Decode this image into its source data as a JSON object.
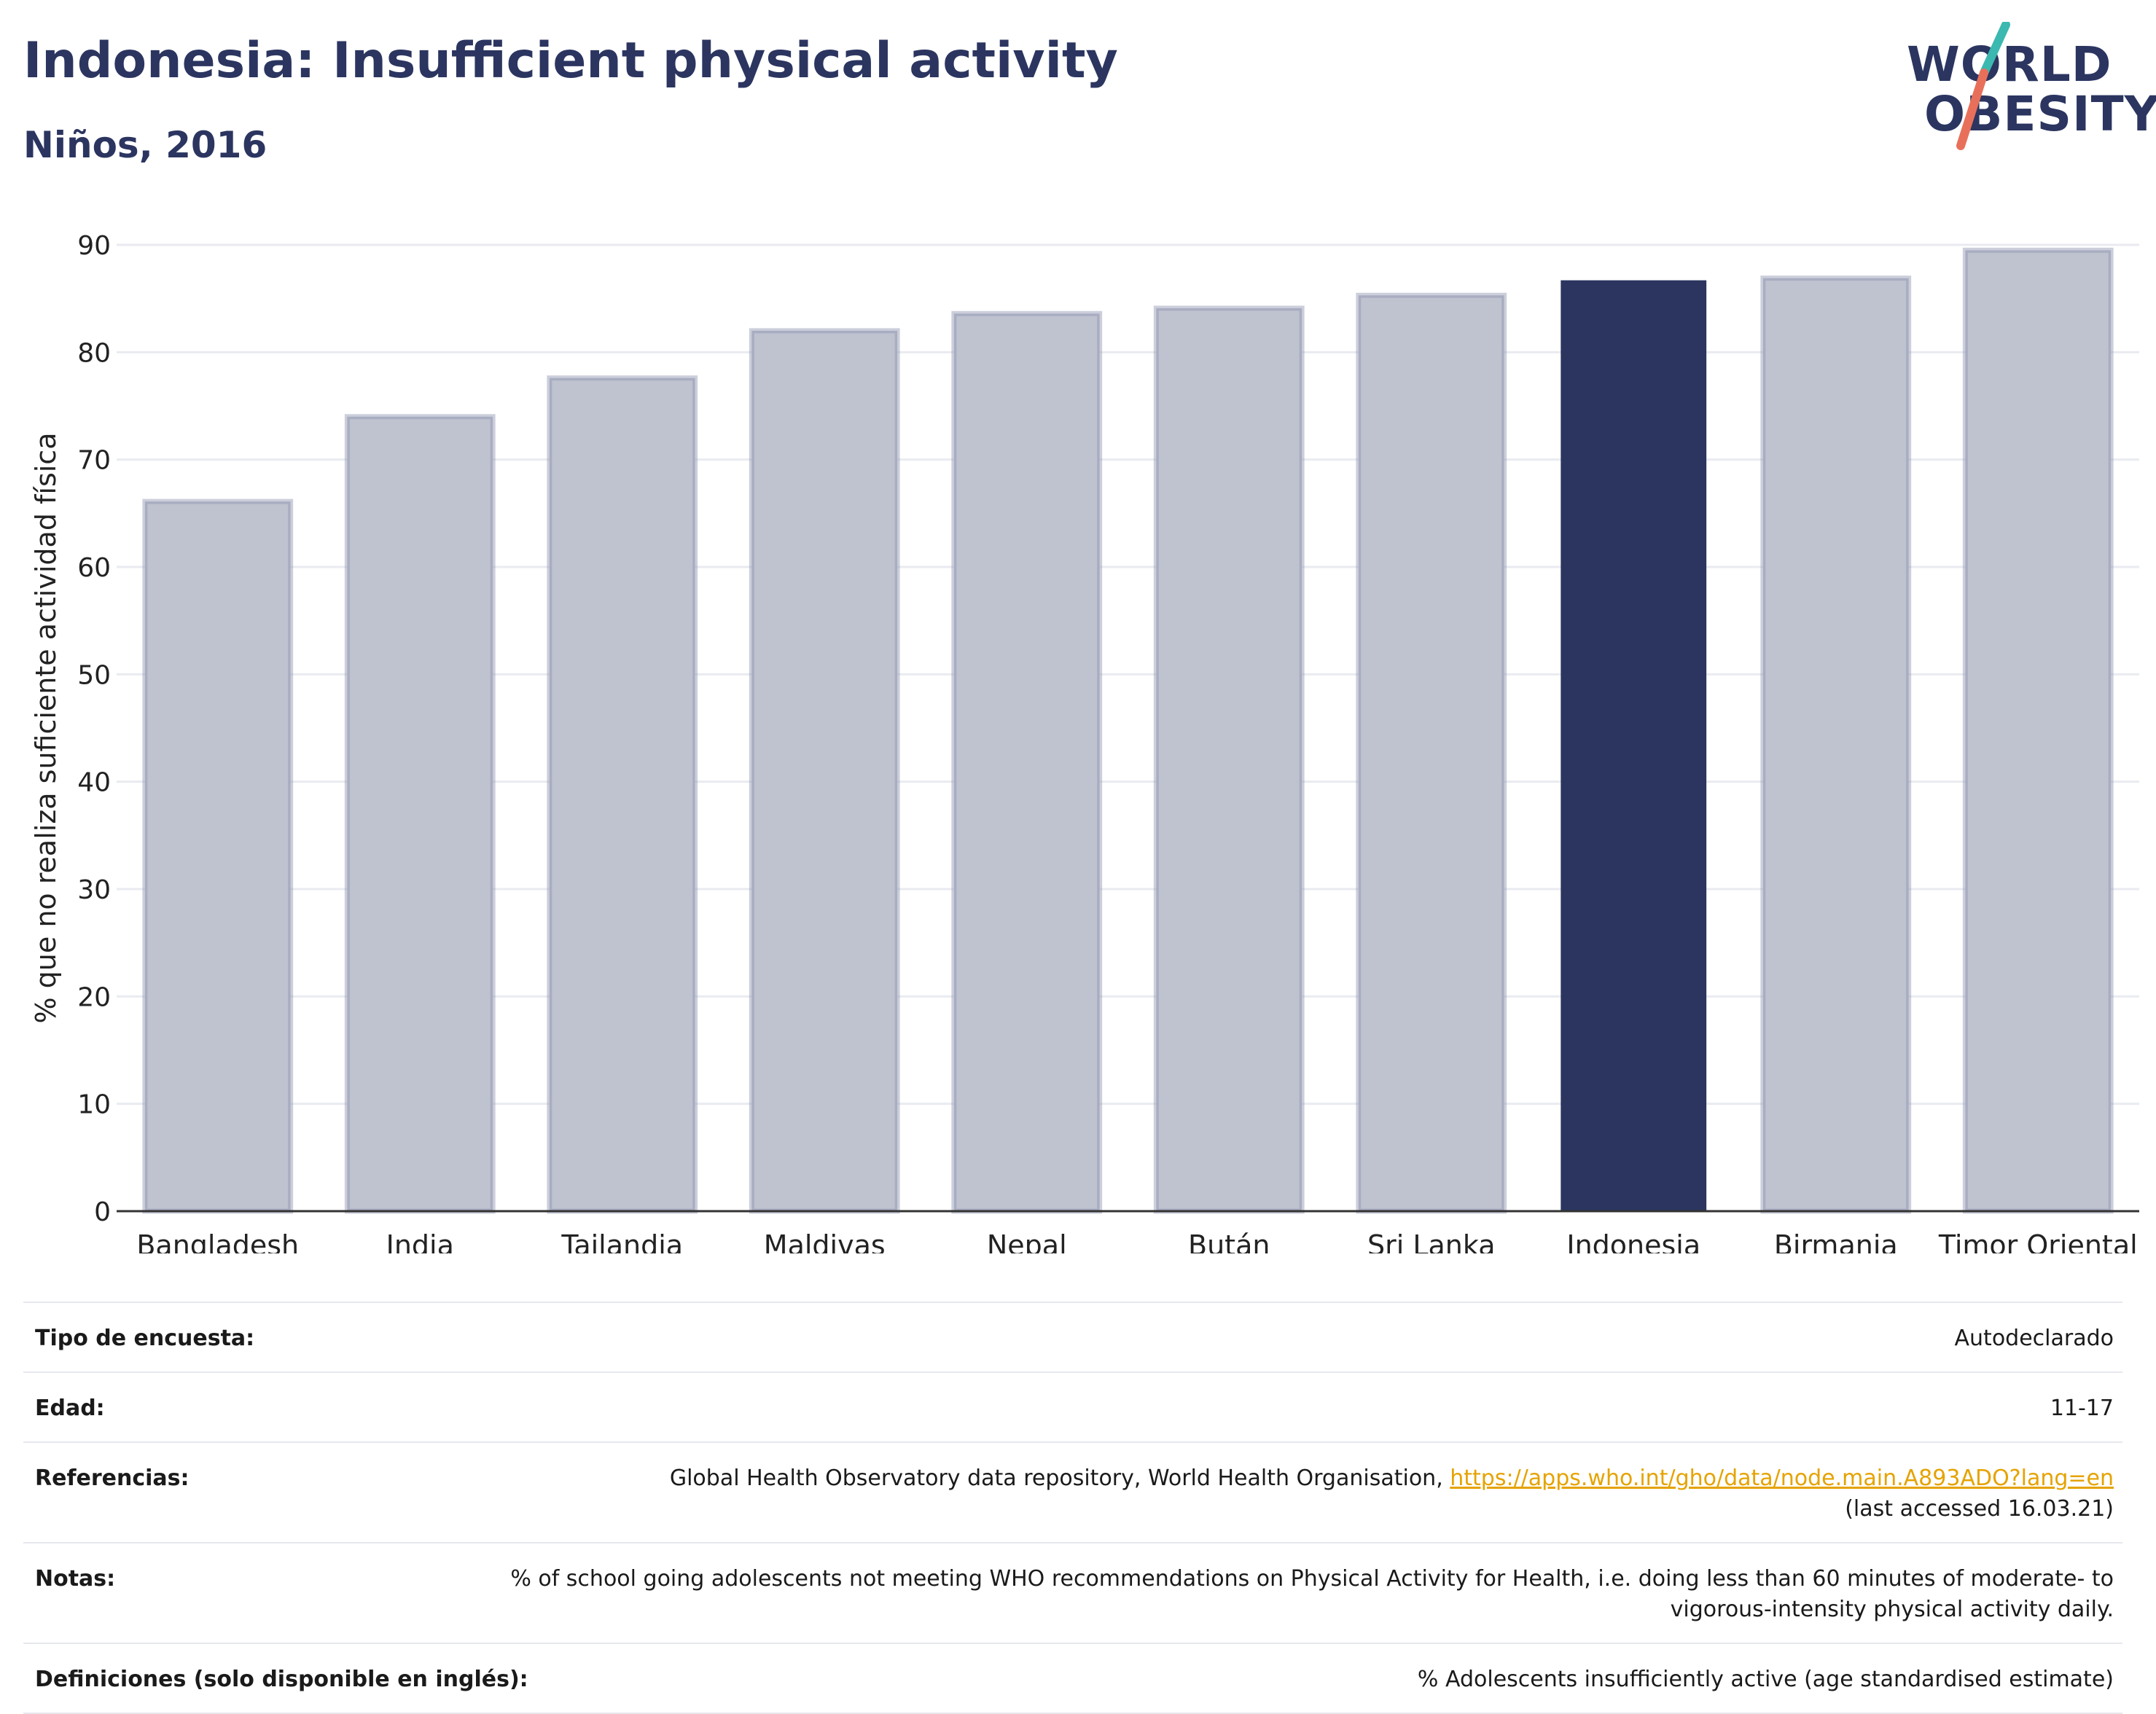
{
  "header": {
    "title": "Indonesia: Insufficient physical activity",
    "subtitle": "Niños, 2016"
  },
  "logo": {
    "line1": "WORLD",
    "line2": "OBESITY",
    "colors": {
      "text": "#2b3560",
      "slash_top": "#3bb8b0",
      "slash_bottom": "#e8705a"
    }
  },
  "chart_data": {
    "type": "bar",
    "title": "Indonesia: Insufficient physical activity",
    "subtitle": "Niños, 2016",
    "ylabel": "% que no realiza suficiente actividad física",
    "xlabel": "",
    "ylim": [
      0,
      90
    ],
    "yticks": [
      0,
      10,
      20,
      30,
      40,
      50,
      60,
      70,
      80,
      90
    ],
    "grid": true,
    "categories": [
      "Bangladesh",
      "India",
      "Tailandia",
      "Maldivas",
      "Nepal",
      "Bután",
      "Sri Lanka",
      "Indonesia",
      "Birmania",
      "Timor Oriental"
    ],
    "values": [
      66.1,
      74.0,
      77.6,
      82.0,
      83.6,
      84.1,
      85.3,
      86.7,
      86.9,
      89.5
    ],
    "highlight": "Indonesia",
    "colors": {
      "bar": "#bfc2cf",
      "bar_border": "#8e95b0",
      "highlight": "#2b3560",
      "grid": "#e9ebf0",
      "axis": "#333333"
    }
  },
  "meta": {
    "survey_type": {
      "label": "Tipo de encuesta:",
      "value": "Autodeclarado"
    },
    "age": {
      "label": "Edad:",
      "value": "11-17"
    },
    "references": {
      "label": "Referencias:",
      "text": "Global Health Observatory data repository, World Health Organisation, ",
      "link": "https://apps.who.int/gho/data/node.main.A893ADO?lang=en",
      "after": "(last accessed 16.03.21)"
    },
    "notes": {
      "label": "Notas:",
      "value": "% of school going adolescents not meeting WHO recommendations on Physical Activity for Health, i.e. doing less than 60 minutes of moderate- to vigorous-intensity physical activity daily."
    },
    "definitions": {
      "label": "Definiciones (solo disponible en inglés):",
      "value": "% Adolescents insufficiently active (age standardised estimate)"
    }
  }
}
